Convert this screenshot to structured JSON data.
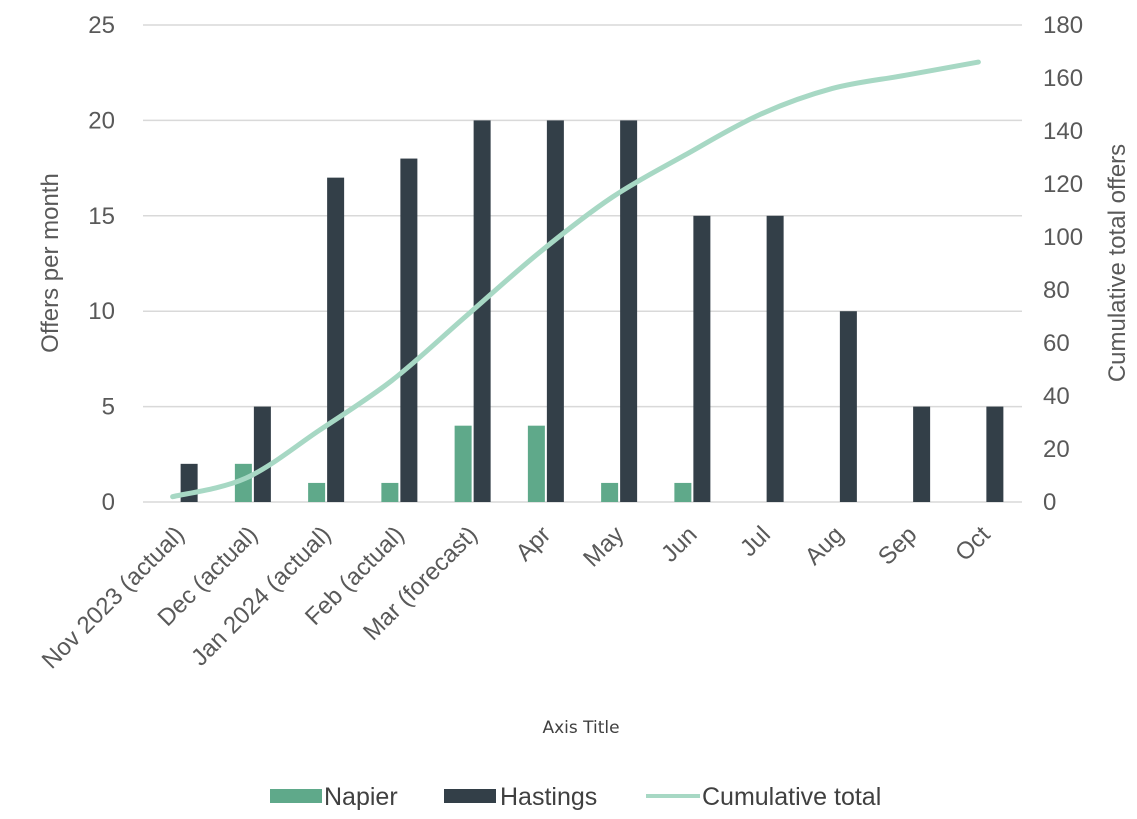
{
  "chart_data": {
    "type": "bar",
    "categories": [
      "Nov 2023 (actual)",
      "Dec (actual)",
      "Jan 2024 (actual)",
      "Feb (actual)",
      "Mar (forecast)",
      "Apr",
      "May",
      "Jun",
      "Jul",
      "Aug",
      "Sep",
      "Oct"
    ],
    "series": [
      {
        "name": "Napier",
        "type": "bar",
        "axis": "left",
        "color": "#5fa98a",
        "values": [
          0,
          2,
          1,
          1,
          4,
          4,
          1,
          1,
          0,
          0,
          0,
          0
        ]
      },
      {
        "name": "Hastings",
        "type": "bar",
        "axis": "left",
        "color": "#333f48",
        "values": [
          2,
          5,
          17,
          18,
          20,
          20,
          20,
          15,
          15,
          10,
          5,
          5
        ]
      },
      {
        "name": "Cumulative total",
        "type": "line",
        "axis": "right",
        "color": "#a7d8c4",
        "values": [
          2,
          9,
          27,
          46,
          70,
          94,
          115,
          131,
          146,
          156,
          161,
          166
        ]
      }
    ],
    "y_left": {
      "label": "Offers per month",
      "min": 0,
      "max": 25,
      "ticks": [
        0,
        5,
        10,
        15,
        20,
        25
      ]
    },
    "y_right": {
      "label": "Cumulative total offers",
      "min": 0,
      "max": 180,
      "ticks": [
        0,
        20,
        40,
        60,
        80,
        100,
        120,
        140,
        160,
        180
      ]
    },
    "xlabel": "Axis Title",
    "grid": true,
    "legend": "bottom",
    "gridline_color": "#d9d9d9"
  }
}
